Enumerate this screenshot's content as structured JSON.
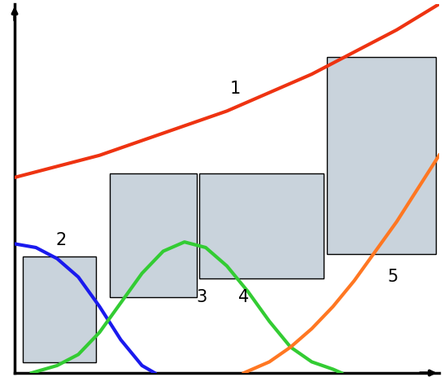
{
  "chart_data": {
    "type": "line",
    "xlim": [
      0,
      100
    ],
    "ylim": [
      0,
      100
    ],
    "xticks": [],
    "yticks": [],
    "tick_labels": false,
    "grid": false,
    "series": [
      {
        "color": "#ee3311",
        "x": [
          0,
          10,
          20,
          30,
          40,
          50,
          60,
          70,
          80,
          90,
          100
        ],
        "values": [
          53,
          56,
          59,
          63,
          67,
          71,
          76,
          81,
          87,
          93,
          100
        ]
      },
      {
        "color": "#1a1aee",
        "x": [
          0,
          5,
          10,
          15,
          20,
          25,
          30,
          33
        ],
        "values": [
          35,
          34,
          31,
          26,
          18,
          9,
          2,
          0
        ]
      },
      {
        "color": "#33cc33",
        "x": [
          4,
          10,
          15,
          20,
          25,
          30,
          35,
          40,
          45,
          50,
          55,
          60,
          65,
          70,
          75,
          77
        ],
        "values": [
          0,
          2,
          5,
          11,
          19,
          27,
          33,
          35.5,
          34,
          29,
          22,
          14,
          7,
          3,
          1,
          0
        ]
      },
      {
        "color": "#ff7722",
        "x": [
          54,
          60,
          65,
          70,
          75,
          80,
          85,
          90,
          95,
          100
        ],
        "values": [
          0,
          3,
          7,
          12,
          18,
          25,
          33,
          41,
          50,
          59
        ]
      }
    ],
    "annotations": [
      {
        "text": "1",
        "x": 52,
        "y": 77
      },
      {
        "text": "2",
        "x": 11,
        "y": 36
      },
      {
        "text": "3",
        "x": 44,
        "y": 20.5
      },
      {
        "text": "4",
        "x": 54,
        "y": 20.5
      },
      {
        "text": "5",
        "x": 89,
        "y": 26
      }
    ]
  }
}
